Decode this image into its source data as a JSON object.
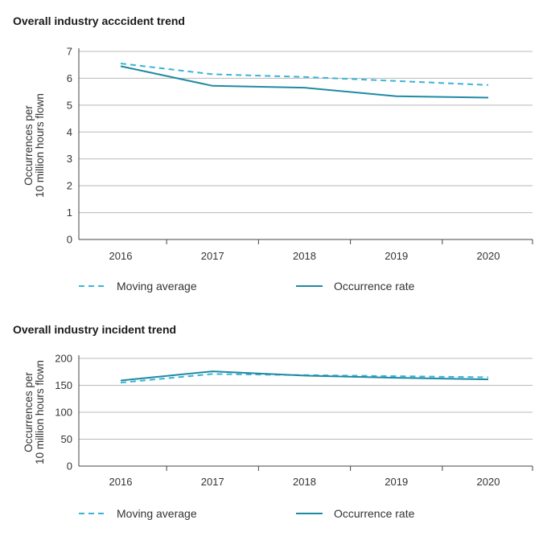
{
  "chart_data": [
    {
      "type": "line",
      "title": "Overall industry acccident trend",
      "ylabel_lines": [
        "Occurrences per",
        "10 million hours flown"
      ],
      "xlabel": "",
      "categories": [
        "2016",
        "2017",
        "2018",
        "2019",
        "2020"
      ],
      "yticks": [
        0,
        1,
        2,
        3,
        4,
        5,
        6,
        7
      ],
      "ylim": [
        0,
        7
      ],
      "grid": true,
      "legend_position": "bottom",
      "series": [
        {
          "name": "Moving average",
          "values": [
            6.55,
            6.15,
            6.05,
            5.9,
            5.75
          ],
          "style": "dashed",
          "color": "#3bb3d6"
        },
        {
          "name": "Occurrence rate",
          "values": [
            6.45,
            5.72,
            5.65,
            5.33,
            5.28
          ],
          "style": "solid",
          "color": "#1f8aa3"
        }
      ]
    },
    {
      "type": "line",
      "title": "Overall industry incident trend",
      "ylabel_lines": [
        "Occurrences per",
        "10 million hours flown"
      ],
      "xlabel": "",
      "categories": [
        "2016",
        "2017",
        "2018",
        "2019",
        "2020"
      ],
      "yticks": [
        0,
        50,
        100,
        150,
        200
      ],
      "ylim": [
        0,
        200
      ],
      "grid": true,
      "legend_position": "bottom",
      "series": [
        {
          "name": "Moving average",
          "values": [
            155,
            171,
            169,
            167,
            165
          ],
          "style": "dashed",
          "color": "#3bb3d6"
        },
        {
          "name": "Occurrence rate",
          "values": [
            159,
            176,
            168,
            164,
            161
          ],
          "style": "solid",
          "color": "#1f8aa3"
        }
      ]
    }
  ]
}
